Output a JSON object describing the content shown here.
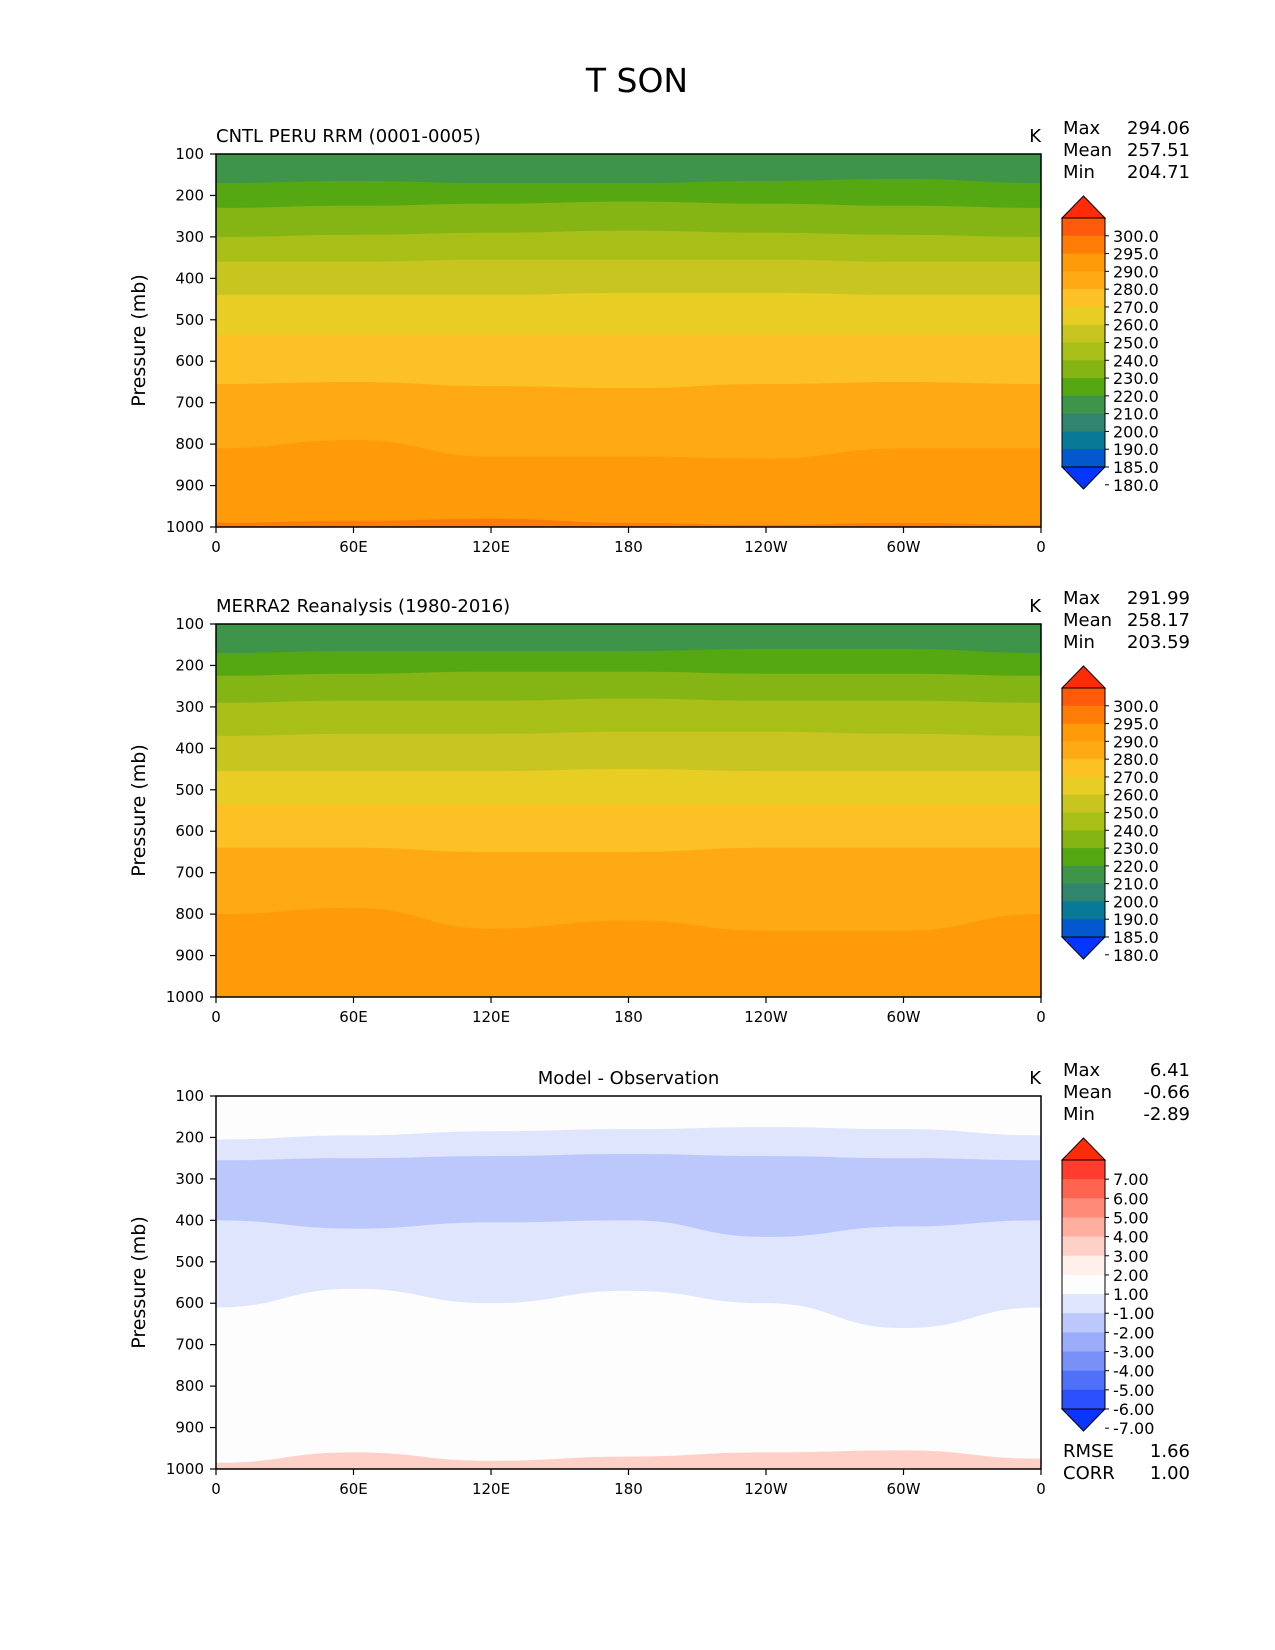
{
  "figure": {
    "title": "T SON"
  },
  "chart_data": [
    {
      "type": "heatmap",
      "title": "CNTL PERU RRM (0001-0005)",
      "units": "K",
      "xlabel": "",
      "ylabel": "Pressure (mb)",
      "x_ticks": [
        "0",
        "60E",
        "120E",
        "180",
        "120W",
        "60W",
        "0"
      ],
      "y_ticks": [
        "100",
        "200",
        "300",
        "400",
        "500",
        "600",
        "700",
        "800",
        "900",
        "1000"
      ],
      "xlim": [
        0,
        360
      ],
      "ylim": [
        1000,
        100
      ],
      "stats": [
        {
          "label": "Max",
          "value": "294.06"
        },
        {
          "label": "Mean",
          "value": "257.51"
        },
        {
          "label": "Min",
          "value": "204.71"
        }
      ],
      "colorbar": {
        "ticks": [
          "300.0",
          "295.0",
          "290.0",
          "280.0",
          "270.0",
          "260.0",
          "250.0",
          "240.0",
          "230.0",
          "220.0",
          "210.0",
          "200.0",
          "190.0",
          "185.0",
          "180.0"
        ],
        "colors": [
          "#ff2a08",
          "#ff5a0c",
          "#ff7d06",
          "#ff9a08",
          "#ffaa14",
          "#fcc124",
          "#e8cd24",
          "#c9c520",
          "#a8bf18",
          "#84b514",
          "#55a812",
          "#3e9448",
          "#31846e",
          "#087a98",
          "#0258cc",
          "#0336ff"
        ],
        "extend": "both"
      },
      "bands": [
        {
          "p": [
            170,
            165,
            170,
            170,
            165,
            160,
            170
          ],
          "color": "#55a812"
        },
        {
          "p": [
            230,
            225,
            220,
            215,
            220,
            225,
            230
          ],
          "color": "#84b514"
        },
        {
          "p": [
            300,
            295,
            290,
            285,
            290,
            295,
            300
          ],
          "color": "#a8bf18"
        },
        {
          "p": [
            360,
            360,
            355,
            355,
            355,
            360,
            360
          ],
          "color": "#c9c520"
        },
        {
          "p": [
            440,
            440,
            440,
            435,
            435,
            440,
            440
          ],
          "color": "#e8cd24"
        },
        {
          "p": [
            535,
            535,
            535,
            535,
            535,
            535,
            535
          ],
          "color": "#fcc124"
        },
        {
          "p": [
            655,
            650,
            660,
            665,
            655,
            650,
            655
          ],
          "color": "#ffaa14"
        },
        {
          "p": [
            810,
            790,
            830,
            830,
            835,
            810,
            810
          ],
          "color": "#ff9a08"
        },
        {
          "p": [
            990,
            985,
            980,
            990,
            995,
            990,
            995
          ],
          "color": "#ff7d06"
        }
      ],
      "base_color": "#3e9448"
    },
    {
      "type": "heatmap",
      "title": "MERRA2 Reanalysis (1980-2016)",
      "units": "K",
      "xlabel": "",
      "ylabel": "Pressure (mb)",
      "x_ticks": [
        "0",
        "60E",
        "120E",
        "180",
        "120W",
        "60W",
        "0"
      ],
      "y_ticks": [
        "100",
        "200",
        "300",
        "400",
        "500",
        "600",
        "700",
        "800",
        "900",
        "1000"
      ],
      "xlim": [
        0,
        360
      ],
      "ylim": [
        1000,
        100
      ],
      "stats": [
        {
          "label": "Max",
          "value": "291.99"
        },
        {
          "label": "Mean",
          "value": "258.17"
        },
        {
          "label": "Min",
          "value": "203.59"
        }
      ],
      "colorbar": {
        "ticks": [
          "300.0",
          "295.0",
          "290.0",
          "280.0",
          "270.0",
          "260.0",
          "250.0",
          "240.0",
          "230.0",
          "220.0",
          "210.0",
          "200.0",
          "190.0",
          "185.0",
          "180.0"
        ],
        "colors": [
          "#ff2a08",
          "#ff5a0c",
          "#ff7d06",
          "#ff9a08",
          "#ffaa14",
          "#fcc124",
          "#e8cd24",
          "#c9c520",
          "#a8bf18",
          "#84b514",
          "#55a812",
          "#3e9448",
          "#31846e",
          "#087a98",
          "#0258cc",
          "#0336ff"
        ],
        "extend": "both"
      },
      "bands": [
        {
          "p": [
            170,
            165,
            165,
            165,
            160,
            160,
            170
          ],
          "color": "#55a812"
        },
        {
          "p": [
            225,
            220,
            215,
            215,
            220,
            220,
            225
          ],
          "color": "#84b514"
        },
        {
          "p": [
            290,
            285,
            285,
            280,
            285,
            285,
            290
          ],
          "color": "#a8bf18"
        },
        {
          "p": [
            370,
            365,
            365,
            360,
            360,
            365,
            370
          ],
          "color": "#c9c520"
        },
        {
          "p": [
            455,
            455,
            455,
            450,
            455,
            455,
            455
          ],
          "color": "#e8cd24"
        },
        {
          "p": [
            535,
            535,
            535,
            535,
            535,
            535,
            535
          ],
          "color": "#fcc124"
        },
        {
          "p": [
            640,
            640,
            650,
            650,
            640,
            640,
            640
          ],
          "color": "#ffaa14"
        },
        {
          "p": [
            800,
            785,
            835,
            815,
            840,
            840,
            800
          ],
          "color": "#ff9a08"
        }
      ],
      "base_color": "#3e9448"
    },
    {
      "type": "heatmap",
      "title": "Model - Observation",
      "units": "K",
      "xlabel": "",
      "ylabel": "Pressure (mb)",
      "x_ticks": [
        "0",
        "60E",
        "120E",
        "180",
        "120W",
        "60W",
        "0"
      ],
      "y_ticks": [
        "100",
        "200",
        "300",
        "400",
        "500",
        "600",
        "700",
        "800",
        "900",
        "1000"
      ],
      "xlim": [
        0,
        360
      ],
      "ylim": [
        1000,
        100
      ],
      "stats": [
        {
          "label": "Max",
          "value": "6.41"
        },
        {
          "label": "Mean",
          "value": "-0.66"
        },
        {
          "label": "Min",
          "value": "-2.89"
        }
      ],
      "extra_stats": [
        {
          "label": "RMSE",
          "value": "1.66"
        },
        {
          "label": "CORR",
          "value": "1.00"
        }
      ],
      "colorbar": {
        "ticks": [
          "7.00",
          "6.00",
          "5.00",
          "4.00",
          "3.00",
          "2.00",
          "1.00",
          "-1.00",
          "-2.00",
          "-3.00",
          "-4.00",
          "-5.00",
          "-6.00",
          "-7.00"
        ],
        "colors": [
          "#ff2a08",
          "#ff3c2e",
          "#ff6450",
          "#ff8a78",
          "#ffaea0",
          "#ffd0c8",
          "#fff0ec",
          "#fdfdfd",
          "#dfe5fd",
          "#bcc8fc",
          "#9aabfa",
          "#7890f8",
          "#5070fa",
          "#2c50fc",
          "#0a34ff"
        ],
        "extend": "both"
      },
      "bands": [
        {
          "p": [
            205,
            195,
            185,
            180,
            175,
            180,
            195
          ],
          "color": "#dfe5fd"
        },
        {
          "p": [
            255,
            250,
            245,
            240,
            245,
            250,
            255
          ],
          "color": "#bcc8fc"
        },
        {
          "p": [
            400,
            420,
            405,
            400,
            440,
            415,
            400
          ],
          "color": "#dfe5fd"
        },
        {
          "p": [
            610,
            565,
            600,
            570,
            600,
            660,
            610
          ],
          "color": "#fdfdfd"
        },
        {
          "p": [
            985,
            960,
            980,
            970,
            960,
            955,
            975
          ],
          "color": "#ffd0c8"
        }
      ],
      "base_color": "#fdfdfd"
    }
  ]
}
